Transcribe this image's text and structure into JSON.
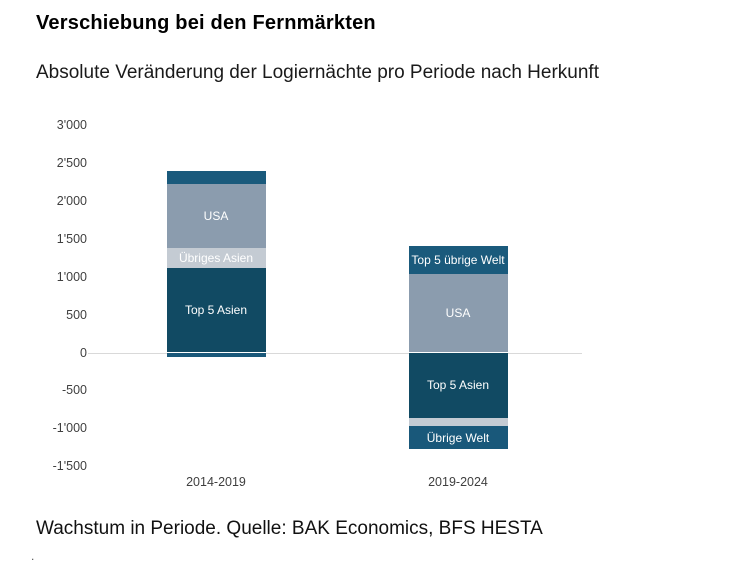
{
  "header": {
    "title": "Verschiebung bei den Fernmärkten",
    "subtitle": "Absolute Veränderung der Logiernächte pro Periode nach Herkunft"
  },
  "caption": {
    "text": "Wachstum in Periode. Quelle: BAK Economics, BFS HESTA",
    "footnote_dot": "."
  },
  "chart_data": {
    "type": "bar",
    "variant": "stacked-column",
    "title": "Verschiebung bei den Fernmärkten",
    "subtitle": "Absolute Veränderung der Logiernächte pro Periode nach Herkunft",
    "categories": [
      "2014-2019",
      "2019-2024"
    ],
    "series": [
      {
        "name": "Top 5 Asien",
        "color": "#114a63",
        "values": [
          1120,
          -870
        ]
      },
      {
        "name": "Übriges Asien",
        "color": "#c4cbd3",
        "values": [
          265,
          -105
        ]
      },
      {
        "name": "USA",
        "color": "#8b9cae",
        "values": [
          845,
          1030
        ]
      },
      {
        "name": "Top 5 übrige Welt",
        "color": "#1a5a7c",
        "values": [
          170,
          370
        ]
      },
      {
        "name": "Übrige Welt",
        "color": "#19587a",
        "values": [
          -55,
          -305
        ]
      }
    ],
    "y_ticks": [
      3000,
      2500,
      2000,
      1500,
      1000,
      500,
      0,
      -500,
      -1000,
      -1500
    ],
    "ylim": [
      -1500,
      3000
    ],
    "tick_thousands_separator": "'",
    "gridlines": "zero-line-only",
    "legend": "labels-inside-segments",
    "label_text_color": "#ffffff",
    "zero_line_color": "#d9d9d9"
  }
}
